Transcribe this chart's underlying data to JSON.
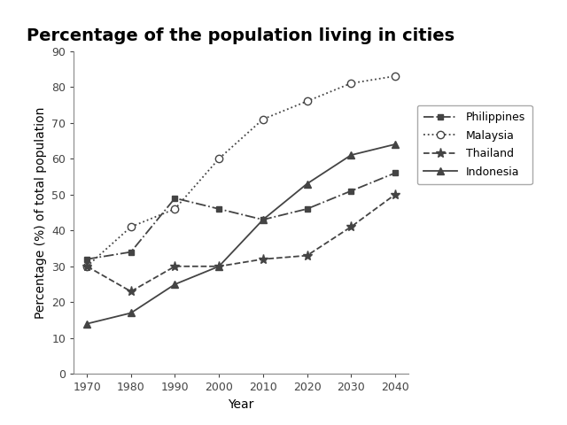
{
  "title": "Percentage of the population living in cities",
  "xlabel": "Year",
  "ylabel": "Percentage (%) of total population",
  "years": [
    1970,
    1980,
    1990,
    2000,
    2010,
    2020,
    2030,
    2040
  ],
  "series": {
    "Philippines": {
      "values": [
        32,
        34,
        49,
        46,
        43,
        46,
        51,
        56
      ],
      "color": "#444444",
      "linestyle": "-.",
      "marker": "s",
      "markersize": 5,
      "markerfacecolor": "#444444"
    },
    "Malaysia": {
      "values": [
        30,
        41,
        46,
        60,
        71,
        76,
        81,
        83
      ],
      "color": "#444444",
      "linestyle": ":",
      "marker": "o",
      "markersize": 6,
      "markerfacecolor": "white"
    },
    "Thailand": {
      "values": [
        30,
        23,
        30,
        30,
        32,
        33,
        41,
        50
      ],
      "color": "#444444",
      "linestyle": "--",
      "marker": "*",
      "markersize": 8,
      "markerfacecolor": "#444444"
    },
    "Indonesia": {
      "values": [
        14,
        17,
        25,
        30,
        43,
        53,
        61,
        64
      ],
      "color": "#444444",
      "linestyle": "-",
      "marker": "^",
      "markersize": 6,
      "markerfacecolor": "#444444"
    }
  },
  "ylim": [
    0,
    90
  ],
  "yticks": [
    0,
    10,
    20,
    30,
    40,
    50,
    60,
    70,
    80,
    90
  ],
  "background_color": "#ffffff",
  "title_fontsize": 14,
  "axis_label_fontsize": 10,
  "tick_fontsize": 9
}
